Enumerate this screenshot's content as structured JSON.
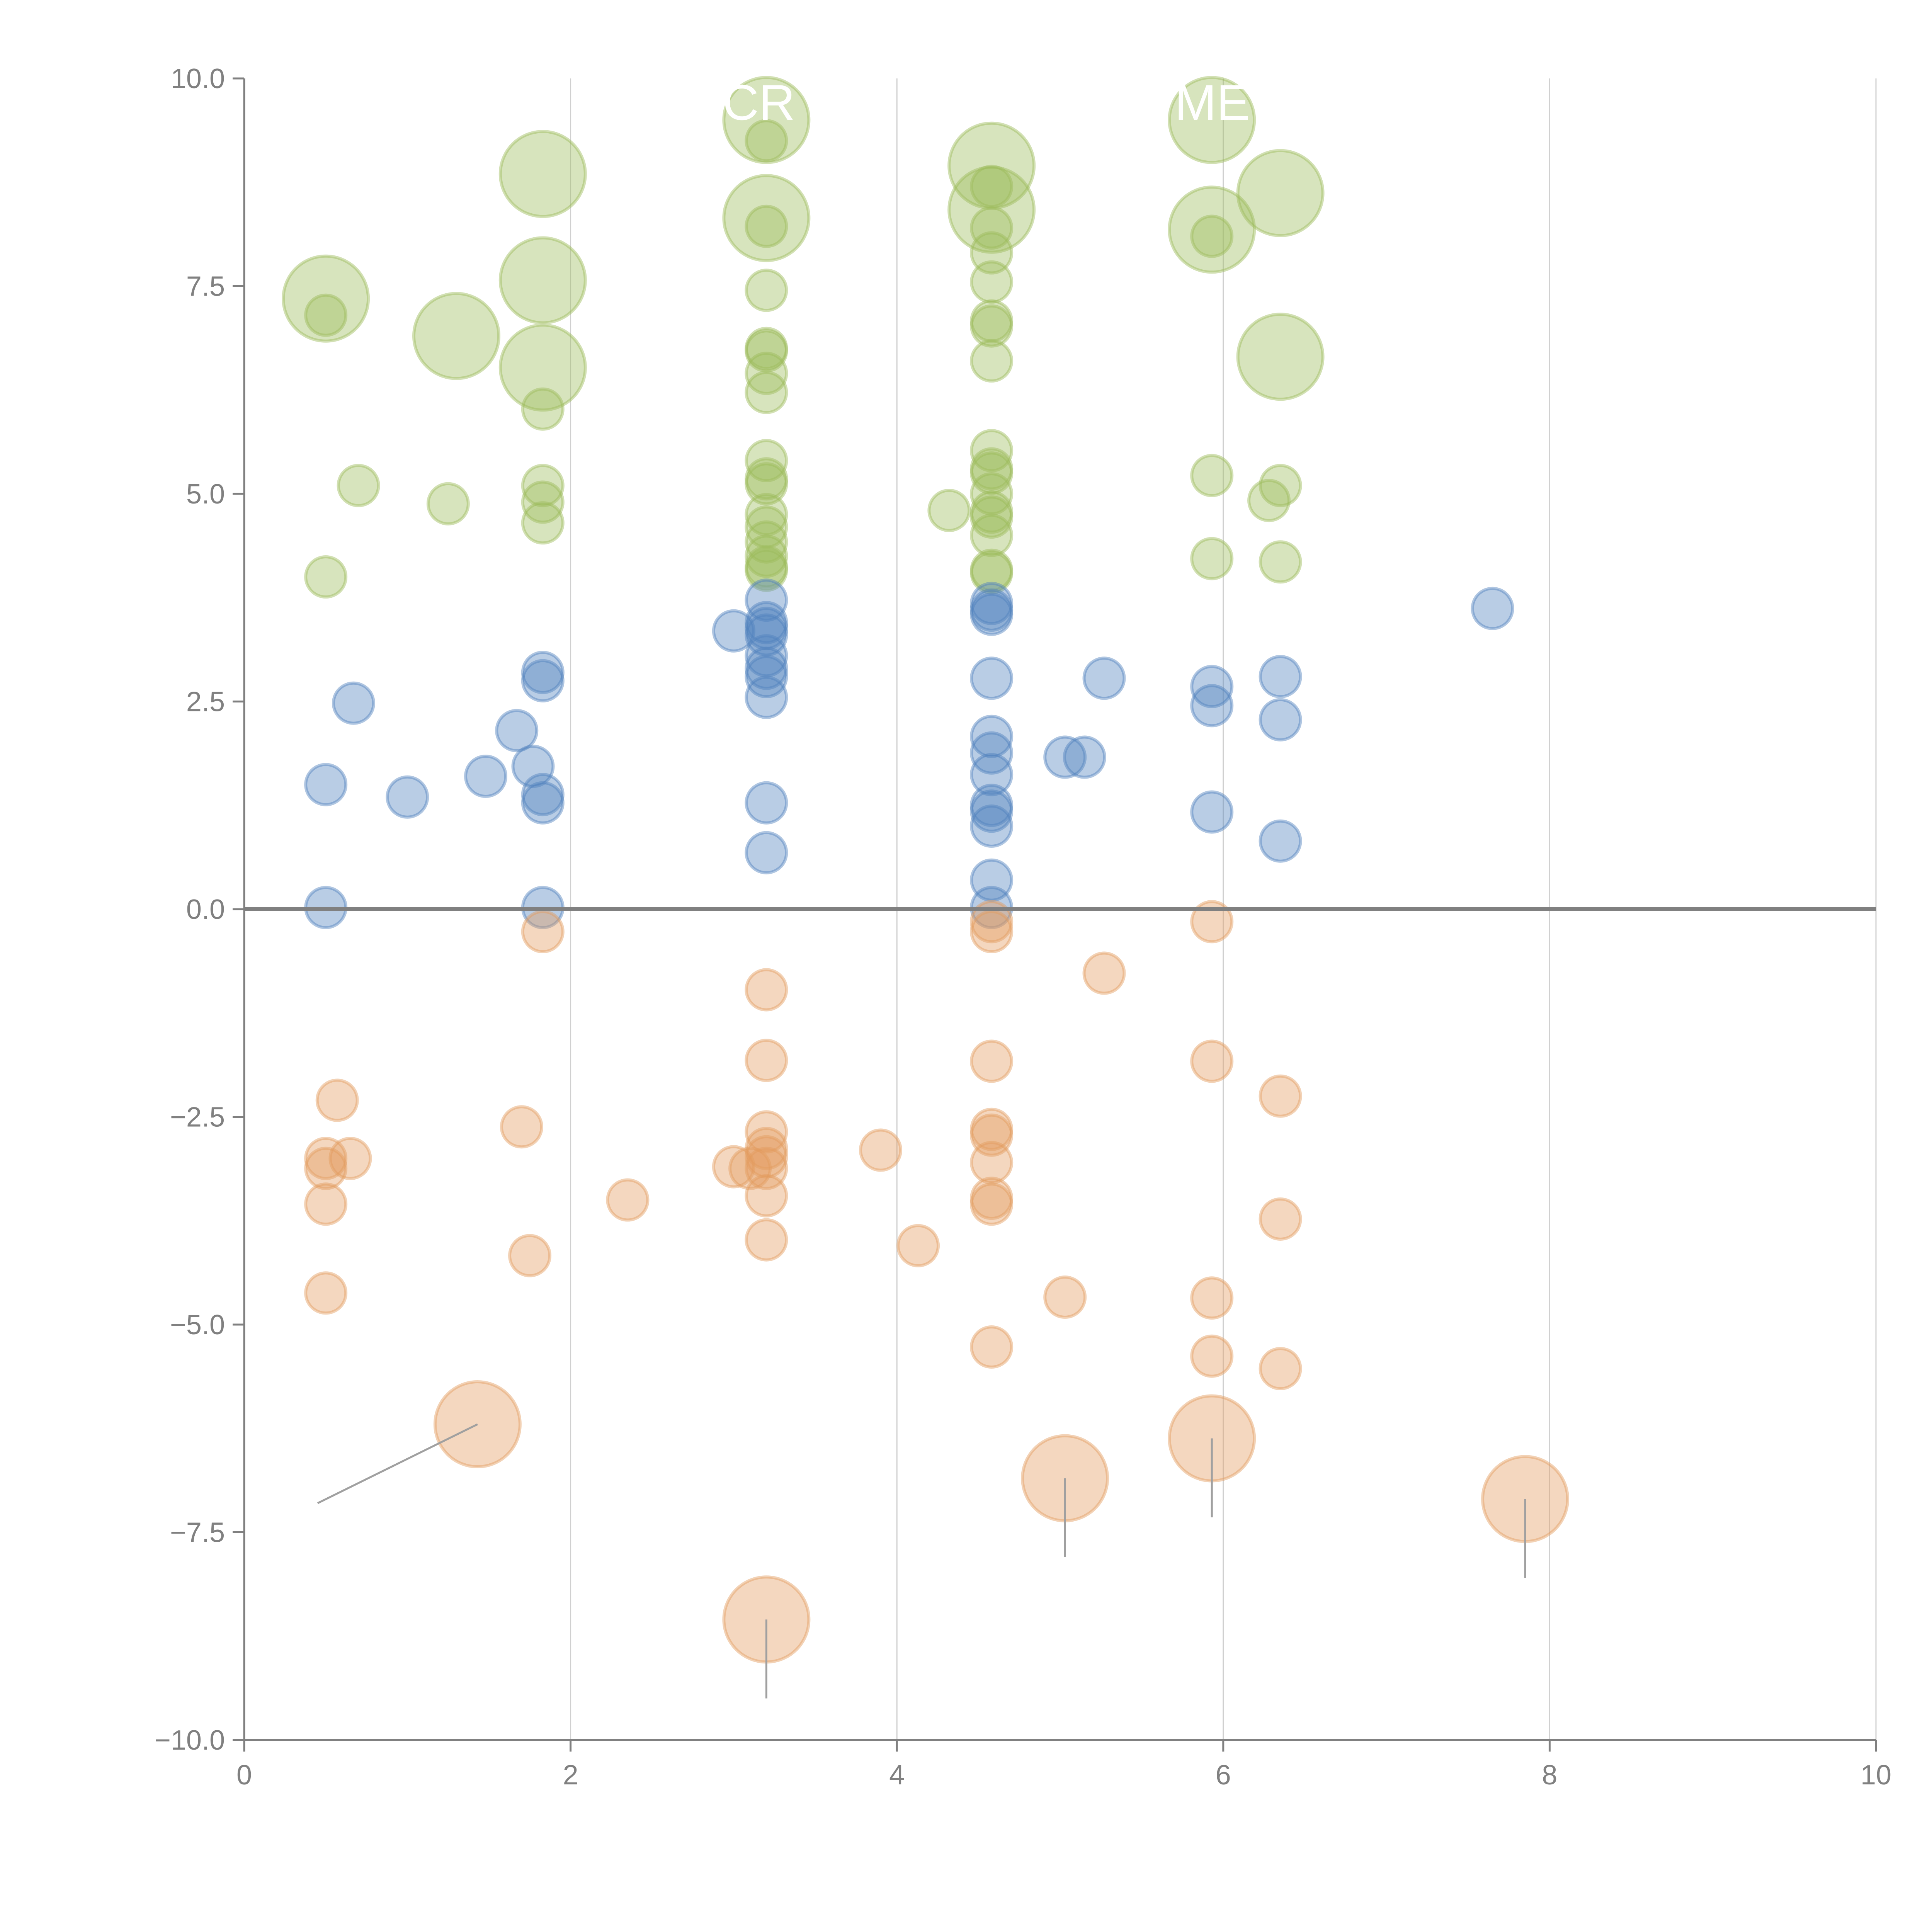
{
  "chart_data": {
    "type": "scatter",
    "title": "",
    "xlabel": "",
    "ylabel": "",
    "xlim": [
      0,
      10
    ],
    "ylim": [
      -10,
      10
    ],
    "x_ticks": [
      "0",
      "2",
      "4",
      "6",
      "8",
      "10"
    ],
    "y_ticks": [
      "10.0",
      "7.5",
      "5.0",
      "2.5",
      "0.0",
      "−2.5",
      "−5.0",
      "−7.5",
      "−10.0"
    ],
    "grid": "vertical",
    "zero_line": true,
    "annotations": [
      "CR",
      "ME"
    ],
    "series": [
      {
        "name": "green",
        "color": "#9bbb59",
        "points": [
          {
            "x": 0.5,
            "y": 7.35,
            "size": "large"
          },
          {
            "x": 0.5,
            "y": 7.15,
            "size": "small"
          },
          {
            "x": 0.7,
            "y": 5.1,
            "size": "small"
          },
          {
            "x": 0.5,
            "y": 4.0,
            "size": "small"
          },
          {
            "x": 1.3,
            "y": 6.9,
            "size": "large"
          },
          {
            "x": 1.25,
            "y": 4.88,
            "size": "small"
          },
          {
            "x": 1.83,
            "y": 8.85,
            "size": "large"
          },
          {
            "x": 1.83,
            "y": 7.57,
            "size": "large"
          },
          {
            "x": 1.83,
            "y": 6.52,
            "size": "large"
          },
          {
            "x": 1.83,
            "y": 6.02,
            "size": "small"
          },
          {
            "x": 1.83,
            "y": 5.1,
            "size": "small"
          },
          {
            "x": 1.83,
            "y": 4.9,
            "size": "small"
          },
          {
            "x": 1.83,
            "y": 4.65,
            "size": "small"
          },
          {
            "x": 3.2,
            "y": 9.5,
            "size": "large"
          },
          {
            "x": 3.2,
            "y": 9.25,
            "size": "small"
          },
          {
            "x": 3.2,
            "y": 8.32,
            "size": "large"
          },
          {
            "x": 3.2,
            "y": 8.22,
            "size": "small"
          },
          {
            "x": 3.2,
            "y": 7.45,
            "size": "small"
          },
          {
            "x": 3.2,
            "y": 6.75,
            "size": "small"
          },
          {
            "x": 3.2,
            "y": 6.72,
            "size": "small"
          },
          {
            "x": 3.2,
            "y": 6.45,
            "size": "small"
          },
          {
            "x": 3.2,
            "y": 6.22,
            "size": "small"
          },
          {
            "x": 3.2,
            "y": 5.4,
            "size": "small"
          },
          {
            "x": 3.2,
            "y": 5.18,
            "size": "small"
          },
          {
            "x": 3.2,
            "y": 5.12,
            "size": "small"
          },
          {
            "x": 3.2,
            "y": 4.75,
            "size": "small"
          },
          {
            "x": 3.2,
            "y": 4.6,
            "size": "small"
          },
          {
            "x": 3.2,
            "y": 4.42,
            "size": "small"
          },
          {
            "x": 3.2,
            "y": 4.25,
            "size": "small"
          },
          {
            "x": 3.2,
            "y": 4.12,
            "size": "small"
          },
          {
            "x": 3.2,
            "y": 4.08,
            "size": "small"
          },
          {
            "x": 4.58,
            "y": 8.95,
            "size": "large"
          },
          {
            "x": 4.58,
            "y": 8.7,
            "size": "small"
          },
          {
            "x": 4.58,
            "y": 8.42,
            "size": "large"
          },
          {
            "x": 4.58,
            "y": 8.2,
            "size": "small"
          },
          {
            "x": 4.58,
            "y": 7.9,
            "size": "small"
          },
          {
            "x": 4.58,
            "y": 7.55,
            "size": "small"
          },
          {
            "x": 4.58,
            "y": 7.08,
            "size": "small"
          },
          {
            "x": 4.58,
            "y": 7.02,
            "size": "small"
          },
          {
            "x": 4.58,
            "y": 6.6,
            "size": "small"
          },
          {
            "x": 4.58,
            "y": 5.52,
            "size": "small"
          },
          {
            "x": 4.58,
            "y": 5.3,
            "size": "small"
          },
          {
            "x": 4.58,
            "y": 5.25,
            "size": "small"
          },
          {
            "x": 4.58,
            "y": 5.0,
            "size": "small"
          },
          {
            "x": 4.58,
            "y": 4.78,
            "size": "small"
          },
          {
            "x": 4.58,
            "y": 4.72,
            "size": "small"
          },
          {
            "x": 4.58,
            "y": 4.5,
            "size": "small"
          },
          {
            "x": 4.58,
            "y": 4.08,
            "size": "small"
          },
          {
            "x": 4.58,
            "y": 4.05,
            "size": "small"
          },
          {
            "x": 4.32,
            "y": 4.8,
            "size": "small"
          },
          {
            "x": 5.93,
            "y": 9.5,
            "size": "large"
          },
          {
            "x": 5.93,
            "y": 8.18,
            "size": "large"
          },
          {
            "x": 5.93,
            "y": 8.1,
            "size": "small"
          },
          {
            "x": 5.93,
            "y": 5.22,
            "size": "small"
          },
          {
            "x": 5.93,
            "y": 4.22,
            "size": "small"
          },
          {
            "x": 6.35,
            "y": 8.62,
            "size": "large"
          },
          {
            "x": 6.35,
            "y": 6.65,
            "size": "large"
          },
          {
            "x": 6.35,
            "y": 5.1,
            "size": "small"
          },
          {
            "x": 6.28,
            "y": 4.92,
            "size": "small"
          },
          {
            "x": 6.35,
            "y": 4.18,
            "size": "small"
          }
        ]
      },
      {
        "name": "blue",
        "color": "#4f81bd",
        "points": [
          {
            "x": 0.67,
            "y": 2.48,
            "size": "small"
          },
          {
            "x": 0.5,
            "y": 1.5,
            "size": "small"
          },
          {
            "x": 0.5,
            "y": 0.02,
            "size": "small"
          },
          {
            "x": 1.0,
            "y": 1.35,
            "size": "small"
          },
          {
            "x": 1.48,
            "y": 1.6,
            "size": "small"
          },
          {
            "x": 1.67,
            "y": 2.15,
            "size": "small"
          },
          {
            "x": 1.77,
            "y": 1.72,
            "size": "small"
          },
          {
            "x": 1.83,
            "y": 2.85,
            "size": "small"
          },
          {
            "x": 1.83,
            "y": 2.75,
            "size": "small"
          },
          {
            "x": 1.83,
            "y": 1.38,
            "size": "small"
          },
          {
            "x": 1.83,
            "y": 1.28,
            "size": "small"
          },
          {
            "x": 1.83,
            "y": 0.02,
            "size": "small"
          },
          {
            "x": 3.2,
            "y": 3.72,
            "size": "small"
          },
          {
            "x": 3.2,
            "y": 3.45,
            "size": "small"
          },
          {
            "x": 3.2,
            "y": 3.38,
            "size": "small"
          },
          {
            "x": 3.0,
            "y": 3.35,
            "size": "small"
          },
          {
            "x": 3.2,
            "y": 3.3,
            "size": "small"
          },
          {
            "x": 3.2,
            "y": 3.05,
            "size": "small"
          },
          {
            "x": 3.2,
            "y": 2.9,
            "size": "small"
          },
          {
            "x": 3.2,
            "y": 2.8,
            "size": "small"
          },
          {
            "x": 3.2,
            "y": 2.55,
            "size": "small"
          },
          {
            "x": 3.2,
            "y": 1.28,
            "size": "small"
          },
          {
            "x": 3.2,
            "y": 0.68,
            "size": "small"
          },
          {
            "x": 4.58,
            "y": 3.68,
            "size": "small"
          },
          {
            "x": 4.58,
            "y": 3.6,
            "size": "small"
          },
          {
            "x": 4.58,
            "y": 3.55,
            "size": "small"
          },
          {
            "x": 4.58,
            "y": 2.78,
            "size": "small"
          },
          {
            "x": 4.58,
            "y": 2.08,
            "size": "small"
          },
          {
            "x": 4.58,
            "y": 1.88,
            "size": "small"
          },
          {
            "x": 4.58,
            "y": 1.62,
            "size": "small"
          },
          {
            "x": 4.58,
            "y": 1.25,
            "size": "small"
          },
          {
            "x": 4.58,
            "y": 1.18,
            "size": "small"
          },
          {
            "x": 4.58,
            "y": 1.0,
            "size": "small"
          },
          {
            "x": 4.58,
            "y": 0.35,
            "size": "small"
          },
          {
            "x": 4.58,
            "y": 0.02,
            "size": "small"
          },
          {
            "x": 5.03,
            "y": 1.83,
            "size": "small"
          },
          {
            "x": 5.15,
            "y": 1.83,
            "size": "small"
          },
          {
            "x": 5.27,
            "y": 2.78,
            "size": "small"
          },
          {
            "x": 5.93,
            "y": 2.68,
            "size": "small"
          },
          {
            "x": 5.93,
            "y": 2.45,
            "size": "small"
          },
          {
            "x": 5.93,
            "y": 1.17,
            "size": "small"
          },
          {
            "x": 6.35,
            "y": 2.8,
            "size": "small"
          },
          {
            "x": 6.35,
            "y": 2.28,
            "size": "small"
          },
          {
            "x": 6.35,
            "y": 0.82,
            "size": "small"
          },
          {
            "x": 7.65,
            "y": 3.62,
            "size": "small"
          }
        ]
      },
      {
        "name": "orange",
        "color": "#e39b5e",
        "points": [
          {
            "x": 0.57,
            "y": -2.3,
            "size": "small"
          },
          {
            "x": 0.5,
            "y": -3.0,
            "size": "small"
          },
          {
            "x": 0.5,
            "y": -3.12,
            "size": "small"
          },
          {
            "x": 0.65,
            "y": -3.0,
            "size": "small"
          },
          {
            "x": 0.5,
            "y": -3.55,
            "size": "small"
          },
          {
            "x": 0.5,
            "y": -4.62,
            "size": "small"
          },
          {
            "x": 1.43,
            "y": -6.2,
            "size": "large"
          },
          {
            "x": 1.7,
            "y": -2.62,
            "size": "small"
          },
          {
            "x": 1.75,
            "y": -4.17,
            "size": "small"
          },
          {
            "x": 1.83,
            "y": -0.27,
            "size": "small"
          },
          {
            "x": 2.35,
            "y": -3.5,
            "size": "small"
          },
          {
            "x": 3.0,
            "y": -3.1,
            "size": "small"
          },
          {
            "x": 3.1,
            "y": -3.12,
            "size": "small"
          },
          {
            "x": 3.2,
            "y": -0.97,
            "size": "small"
          },
          {
            "x": 3.2,
            "y": -1.82,
            "size": "small"
          },
          {
            "x": 3.2,
            "y": -2.68,
            "size": "small"
          },
          {
            "x": 3.2,
            "y": -2.88,
            "size": "small"
          },
          {
            "x": 3.2,
            "y": -2.98,
            "size": "small"
          },
          {
            "x": 3.2,
            "y": -3.12,
            "size": "small"
          },
          {
            "x": 3.2,
            "y": -3.45,
            "size": "small"
          },
          {
            "x": 3.2,
            "y": -3.98,
            "size": "small"
          },
          {
            "x": 3.2,
            "y": -8.55,
            "size": "large"
          },
          {
            "x": 3.9,
            "y": -2.9,
            "size": "small"
          },
          {
            "x": 4.13,
            "y": -4.05,
            "size": "small"
          },
          {
            "x": 4.58,
            "y": -0.15,
            "size": "small"
          },
          {
            "x": 4.58,
            "y": -0.27,
            "size": "small"
          },
          {
            "x": 4.58,
            "y": -1.83,
            "size": "small"
          },
          {
            "x": 4.58,
            "y": -2.65,
            "size": "small"
          },
          {
            "x": 4.58,
            "y": -2.72,
            "size": "small"
          },
          {
            "x": 4.58,
            "y": -3.05,
            "size": "small"
          },
          {
            "x": 4.58,
            "y": -3.48,
            "size": "small"
          },
          {
            "x": 4.58,
            "y": -3.55,
            "size": "small"
          },
          {
            "x": 4.58,
            "y": -5.27,
            "size": "small"
          },
          {
            "x": 5.03,
            "y": -4.67,
            "size": "small"
          },
          {
            "x": 5.03,
            "y": -6.85,
            "size": "large"
          },
          {
            "x": 5.27,
            "y": -0.77,
            "size": "small"
          },
          {
            "x": 5.93,
            "y": -0.15,
            "size": "small"
          },
          {
            "x": 5.93,
            "y": -1.83,
            "size": "small"
          },
          {
            "x": 5.93,
            "y": -4.68,
            "size": "small"
          },
          {
            "x": 5.93,
            "y": -5.38,
            "size": "small"
          },
          {
            "x": 5.93,
            "y": -6.37,
            "size": "large"
          },
          {
            "x": 6.35,
            "y": -2.25,
            "size": "small"
          },
          {
            "x": 6.35,
            "y": -3.73,
            "size": "small"
          },
          {
            "x": 6.35,
            "y": -5.53,
            "size": "small"
          },
          {
            "x": 7.85,
            "y": -7.1,
            "size": "large"
          }
        ]
      }
    ],
    "leader_lines": [
      {
        "from": [
          1.43,
          -6.2
        ],
        "to": [
          0.45,
          -7.15
        ]
      },
      {
        "from": [
          3.2,
          -8.55
        ],
        "to": [
          3.2,
          -9.5
        ]
      },
      {
        "from": [
          5.03,
          -6.85
        ],
        "to": [
          5.03,
          -7.8
        ]
      },
      {
        "from": [
          5.93,
          -6.37
        ],
        "to": [
          5.93,
          -7.32
        ]
      },
      {
        "from": [
          7.85,
          -7.1
        ],
        "to": [
          7.85,
          -8.05
        ]
      }
    ]
  }
}
